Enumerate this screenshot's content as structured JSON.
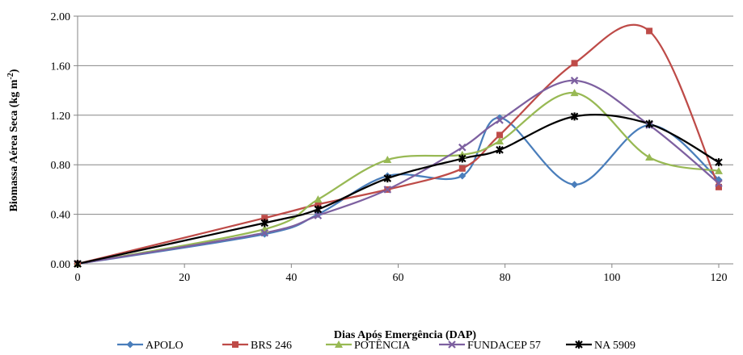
{
  "chart_data": {
    "type": "line",
    "smooth": true,
    "xlabel": "Dias Após Emergência (DAP)",
    "ylabel": "Biomassa Aérea Seca  (kg m",
    "ylabel_sup": "-2",
    "ylabel_close": ")",
    "xlim": [
      0,
      120
    ],
    "ylim": [
      0.0,
      2.0
    ],
    "x_ticks": [
      0,
      20,
      40,
      60,
      80,
      100,
      120
    ],
    "x_tick_labels": [
      "0",
      "20",
      "40",
      "60",
      "80",
      "100",
      "120"
    ],
    "y_ticks": [
      0.0,
      0.4,
      0.8,
      1.2,
      1.6,
      2.0
    ],
    "y_tick_labels": [
      "0.00",
      "0.40",
      "0.80",
      "1.20",
      "1.60",
      "2.00"
    ],
    "grid": "horizontal",
    "legend_position": "bottom",
    "x": [
      0,
      35,
      45,
      58,
      72,
      79,
      93,
      107,
      120
    ],
    "series": [
      {
        "name": "APOLO",
        "color": "#4a7ebb",
        "marker": "diamond",
        "values": [
          0.0,
          0.24,
          0.4,
          0.71,
          0.71,
          1.18,
          0.64,
          1.12,
          0.68
        ]
      },
      {
        "name": "BRS 246",
        "color": "#be4b48",
        "marker": "square",
        "values": [
          0.0,
          0.37,
          0.48,
          0.6,
          0.77,
          1.04,
          1.62,
          1.88,
          0.62
        ]
      },
      {
        "name": "POTÊNCIA",
        "color": "#98b954",
        "marker": "triangle",
        "values": [
          0.0,
          0.28,
          0.52,
          0.84,
          0.88,
          0.99,
          1.38,
          0.86,
          0.75
        ]
      },
      {
        "name": "FUNDACEP 57",
        "color": "#7d60a0",
        "marker": "x",
        "values": [
          0.0,
          0.25,
          0.39,
          0.6,
          0.94,
          1.16,
          1.48,
          1.12,
          0.65
        ]
      },
      {
        "name": "NA 5909",
        "color": "#000000",
        "marker": "star",
        "values": [
          0.0,
          0.33,
          0.44,
          0.69,
          0.85,
          0.92,
          1.19,
          1.13,
          0.82
        ]
      }
    ]
  }
}
